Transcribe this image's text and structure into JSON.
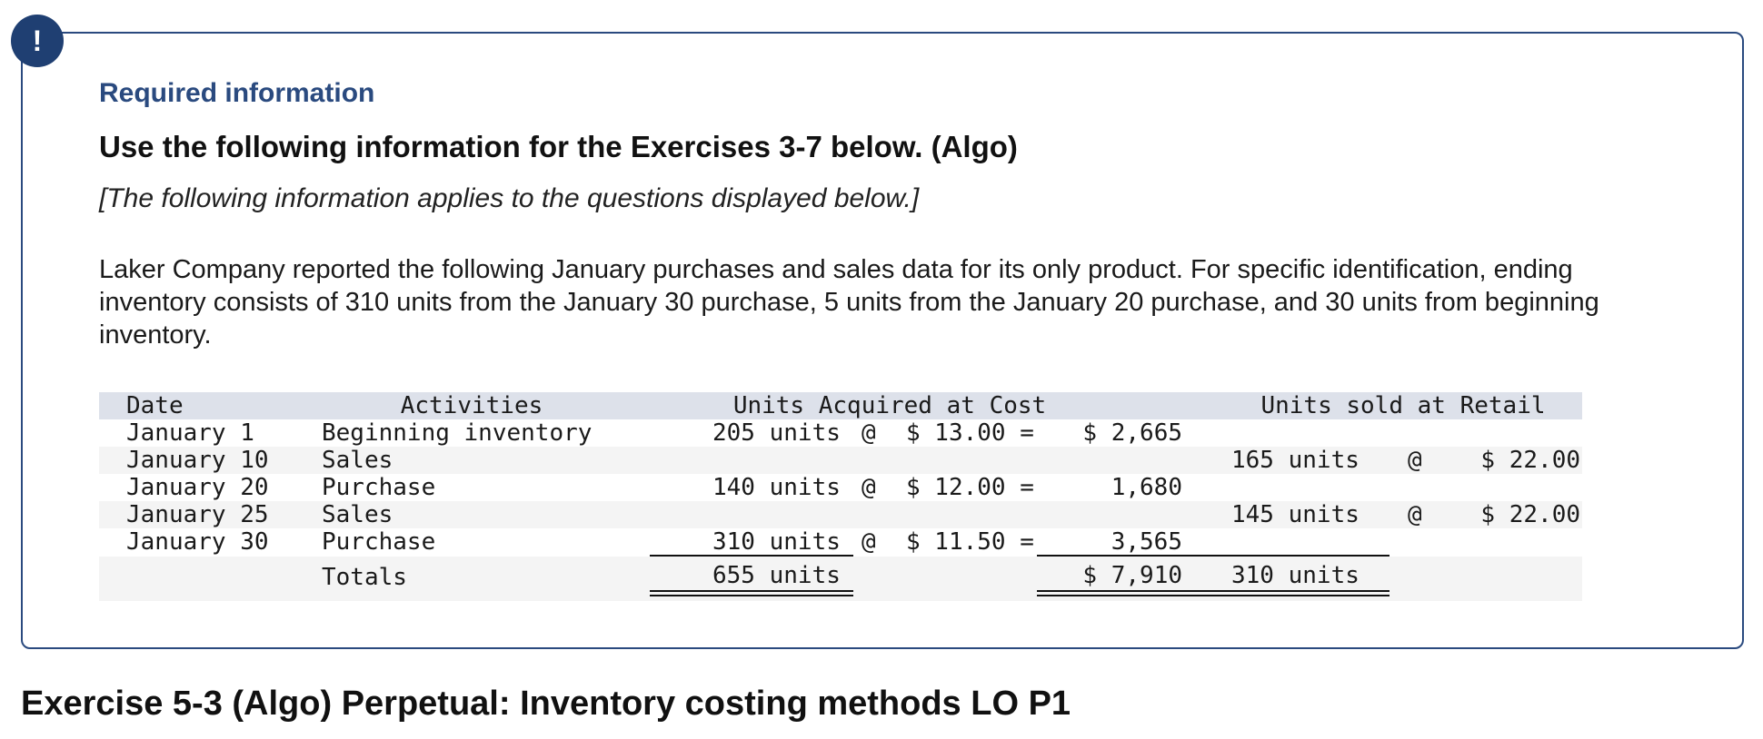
{
  "alert": {
    "symbol": "!"
  },
  "info": {
    "required_title": "Required information",
    "heading": "Use the following information for the Exercises 3-7 below. (Algo)",
    "note": "[The following information applies to the questions displayed below.]",
    "paragraph": "Laker Company reported the following January purchases and sales data for its only product. For specific identification, ending inventory consists of 310 units from the January 30 purchase, 5 units from the January 20 purchase, and 30 units from beginning inventory."
  },
  "table": {
    "headers": {
      "date": "Date",
      "activities": "Activities",
      "acquired": "Units Acquired at Cost",
      "sold": "Units sold at Retail"
    },
    "rows": [
      {
        "date": "January 1",
        "activity": "Beginning inventory",
        "acq_units": "205 units",
        "acq_at": "@",
        "acq_price": "$ 13.00 =",
        "acq_total": "$ 2,665",
        "sold_units": "",
        "sold_at": "",
        "sold_price": ""
      },
      {
        "date": "January 10",
        "activity": "Sales",
        "acq_units": "",
        "acq_at": "",
        "acq_price": "",
        "acq_total": "",
        "sold_units": "165 units",
        "sold_at": "@",
        "sold_price": "$ 22.00"
      },
      {
        "date": "January 20",
        "activity": "Purchase",
        "acq_units": "140 units",
        "acq_at": "@",
        "acq_price": "$ 12.00 =",
        "acq_total": "1,680",
        "sold_units": "",
        "sold_at": "",
        "sold_price": ""
      },
      {
        "date": "January 25",
        "activity": "Sales",
        "acq_units": "",
        "acq_at": "",
        "acq_price": "",
        "acq_total": "",
        "sold_units": "145 units",
        "sold_at": "@",
        "sold_price": "$ 22.00"
      },
      {
        "date": "January 30",
        "activity": "Purchase",
        "acq_units": "310 units",
        "acq_at": "@",
        "acq_price": "$ 11.50 =",
        "acq_total": "3,565",
        "sold_units": "",
        "sold_at": "",
        "sold_price": ""
      }
    ],
    "totals": {
      "label": "Totals",
      "acq_units": "655 units",
      "acq_total": "$ 7,910",
      "sold_units": "310 units"
    }
  },
  "exercise": {
    "title": "Exercise 5-3 (Algo) Perpetual: Inventory costing methods LO P1"
  },
  "colors": {
    "accent": "#2a4a7f",
    "badge": "#1f3f72",
    "header_band": "#dde1ea",
    "alt_band": "#f4f4f4"
  }
}
